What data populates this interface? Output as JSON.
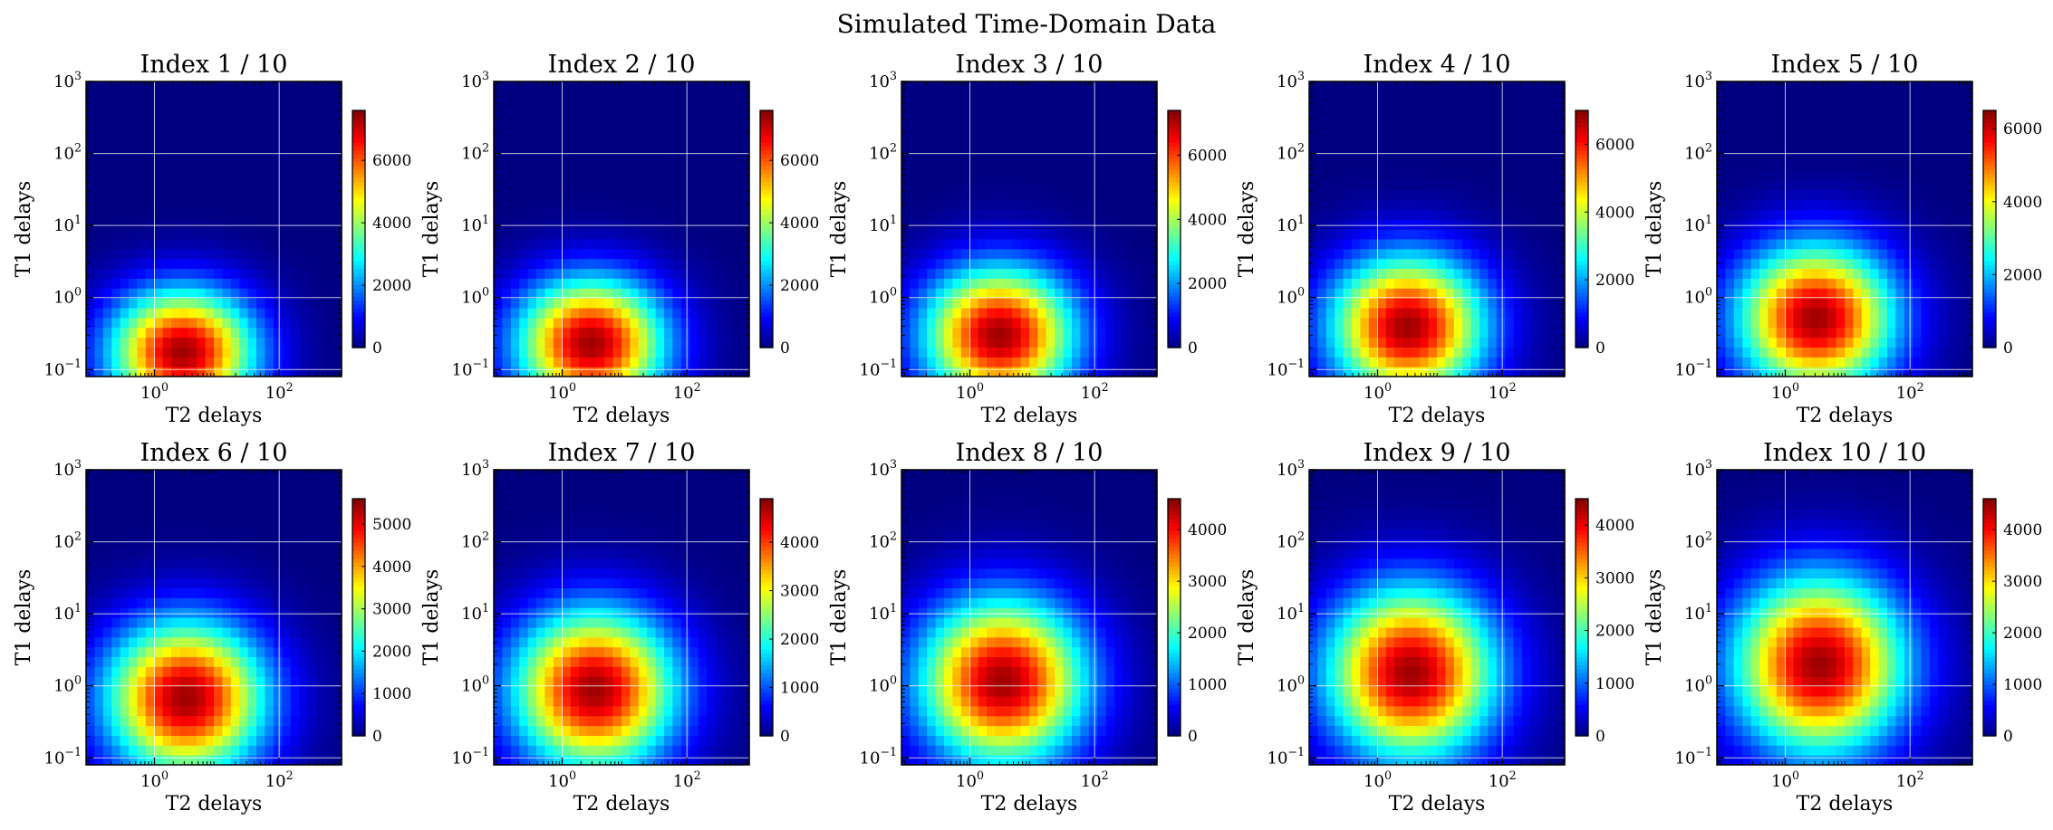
{
  "figure": {
    "title": "Simulated Time-Domain Data"
  },
  "colors": {
    "background": "#ffffff",
    "grid": "#ffffff",
    "axis": "#000000"
  },
  "colormap": "jet",
  "chart_data": [
    {
      "type": "heatmap",
      "title": "Index 1 / 10",
      "xlabel": "T2 delays",
      "ylabel": "T1 delays",
      "x_scale": "log",
      "y_scale": "log",
      "x_ticks": [
        1,
        100
      ],
      "y_ticks": [
        0.1,
        1,
        10,
        100,
        1000
      ],
      "xlim": [
        0.08,
        1000
      ],
      "ylim": [
        0.08,
        1000
      ],
      "grid": true,
      "colorbar": {
        "min": 0,
        "max": 7600,
        "ticks": [
          0,
          2000,
          4000,
          6000
        ]
      }
    },
    {
      "type": "heatmap",
      "title": "Index 2 / 10",
      "xlabel": "T2 delays",
      "ylabel": "T1 delays",
      "x_scale": "log",
      "y_scale": "log",
      "x_ticks": [
        1,
        100
      ],
      "y_ticks": [
        0.1,
        1,
        10,
        100,
        1000
      ],
      "xlim": [
        0.08,
        1000
      ],
      "ylim": [
        0.08,
        1000
      ],
      "grid": true,
      "colorbar": {
        "min": 0,
        "max": 7600,
        "ticks": [
          0,
          2000,
          4000,
          6000
        ]
      }
    },
    {
      "type": "heatmap",
      "title": "Index 3 / 10",
      "xlabel": "T2 delays",
      "ylabel": "T1 delays",
      "x_scale": "log",
      "y_scale": "log",
      "x_ticks": [
        1,
        100
      ],
      "y_ticks": [
        0.1,
        1,
        10,
        100,
        1000
      ],
      "xlim": [
        0.08,
        1000
      ],
      "ylim": [
        0.08,
        1000
      ],
      "grid": true,
      "colorbar": {
        "min": 0,
        "max": 7400,
        "ticks": [
          0,
          2000,
          4000,
          6000
        ]
      }
    },
    {
      "type": "heatmap",
      "title": "Index 4 / 10",
      "xlabel": "T2 delays",
      "ylabel": "T1 delays",
      "x_scale": "log",
      "y_scale": "log",
      "x_ticks": [
        1,
        100
      ],
      "y_ticks": [
        0.1,
        1,
        10,
        100,
        1000
      ],
      "xlim": [
        0.08,
        1000
      ],
      "ylim": [
        0.08,
        1000
      ],
      "grid": true,
      "colorbar": {
        "min": 0,
        "max": 7000,
        "ticks": [
          0,
          2000,
          4000,
          6000
        ]
      }
    },
    {
      "type": "heatmap",
      "title": "Index 5 / 10",
      "xlabel": "T2 delays",
      "ylabel": "T1 delays",
      "x_scale": "log",
      "y_scale": "log",
      "x_ticks": [
        1,
        100
      ],
      "y_ticks": [
        0.1,
        1,
        10,
        100,
        1000
      ],
      "xlim": [
        0.08,
        1000
      ],
      "ylim": [
        0.08,
        1000
      ],
      "grid": true,
      "colorbar": {
        "min": 0,
        "max": 6500,
        "ticks": [
          0,
          2000,
          4000,
          6000
        ]
      }
    },
    {
      "type": "heatmap",
      "title": "Index 6 / 10",
      "xlabel": "T2 delays",
      "ylabel": "T1 delays",
      "x_scale": "log",
      "y_scale": "log",
      "x_ticks": [
        1,
        100
      ],
      "y_ticks": [
        0.1,
        1,
        10,
        100,
        1000
      ],
      "xlim": [
        0.08,
        1000
      ],
      "ylim": [
        0.08,
        1000
      ],
      "grid": true,
      "colorbar": {
        "min": 0,
        "max": 5600,
        "ticks": [
          0,
          1000,
          2000,
          3000,
          4000,
          5000
        ]
      }
    },
    {
      "type": "heatmap",
      "title": "Index 7 / 10",
      "xlabel": "T2 delays",
      "ylabel": "T1 delays",
      "x_scale": "log",
      "y_scale": "log",
      "x_ticks": [
        1,
        100
      ],
      "y_ticks": [
        0.1,
        1,
        10,
        100,
        1000
      ],
      "xlim": [
        0.08,
        1000
      ],
      "ylim": [
        0.08,
        1000
      ],
      "grid": true,
      "colorbar": {
        "min": 0,
        "max": 4900,
        "ticks": [
          0,
          1000,
          2000,
          3000,
          4000
        ]
      }
    },
    {
      "type": "heatmap",
      "title": "Index 8 / 10",
      "xlabel": "T2 delays",
      "ylabel": "T1 delays",
      "x_scale": "log",
      "y_scale": "log",
      "x_ticks": [
        1,
        100
      ],
      "y_ticks": [
        0.1,
        1,
        10,
        100,
        1000
      ],
      "xlim": [
        0.08,
        1000
      ],
      "ylim": [
        0.08,
        1000
      ],
      "grid": true,
      "colorbar": {
        "min": 0,
        "max": 4600,
        "ticks": [
          0,
          1000,
          2000,
          3000,
          4000
        ]
      }
    },
    {
      "type": "heatmap",
      "title": "Index 9 / 10",
      "xlabel": "T2 delays",
      "ylabel": "T1 delays",
      "x_scale": "log",
      "y_scale": "log",
      "x_ticks": [
        1,
        100
      ],
      "y_ticks": [
        0.1,
        1,
        10,
        100,
        1000
      ],
      "xlim": [
        0.08,
        1000
      ],
      "ylim": [
        0.08,
        1000
      ],
      "grid": true,
      "colorbar": {
        "min": 0,
        "max": 4500,
        "ticks": [
          0,
          1000,
          2000,
          3000,
          4000
        ]
      }
    },
    {
      "type": "heatmap",
      "title": "Index 10 / 10",
      "xlabel": "T2 delays",
      "ylabel": "T1 delays",
      "x_scale": "log",
      "y_scale": "log",
      "x_ticks": [
        1,
        100
      ],
      "y_ticks": [
        0.1,
        1,
        10,
        100,
        1000
      ],
      "xlim": [
        0.08,
        1000
      ],
      "ylim": [
        0.08,
        1000
      ],
      "grid": true,
      "colorbar": {
        "min": 0,
        "max": 4600,
        "ticks": [
          0,
          1000,
          2000,
          3000,
          4000
        ]
      }
    }
  ]
}
